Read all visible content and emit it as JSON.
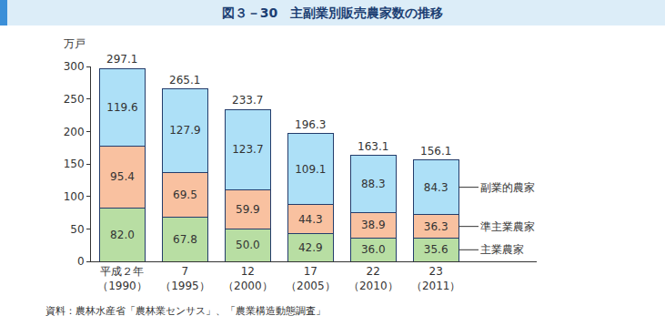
{
  "chart_data": {
    "type": "bar",
    "title": "図３－30　主副業別販売農家数の推移",
    "y_label": "万戸",
    "source": "資料：農林水産省「農林業センサス」、「農業構造動態調査」",
    "categories": [
      "平成２年\n（1990）",
      "7\n（1995）",
      "12\n（2000）",
      "17\n（2005）",
      "22\n（2010）",
      "23\n（2011）"
    ],
    "series": [
      {
        "name": "主業農家",
        "color": "#b8dea3",
        "values": [
          82.0,
          67.8,
          50.0,
          42.9,
          36.0,
          35.6
        ],
        "value_labels": [
          "82.0",
          "67.8",
          "50.0",
          "42.9",
          "36.0",
          "35.6"
        ]
      },
      {
        "name": "準主業農家",
        "color": "#f9c1a0",
        "values": [
          95.4,
          69.5,
          59.9,
          44.3,
          38.9,
          36.3
        ],
        "value_labels": [
          "95.4",
          "69.5",
          "59.9",
          "44.3",
          "38.9",
          "36.3"
        ]
      },
      {
        "name": "副業的農家",
        "color": "#ade0f7",
        "values": [
          119.6,
          127.9,
          123.7,
          109.1,
          88.3,
          84.3
        ],
        "value_labels": [
          "119.6",
          "127.9",
          "123.7",
          "109.1",
          "88.3",
          "84.3"
        ]
      }
    ],
    "totals": [
      297.1,
      265.1,
      233.7,
      196.3,
      163.1,
      156.1
    ],
    "stacked": true,
    "data_labels": true,
    "ylim": [
      0,
      300
    ],
    "yticks": [
      0,
      50,
      100,
      150,
      200,
      250,
      300
    ],
    "grid": false
  }
}
